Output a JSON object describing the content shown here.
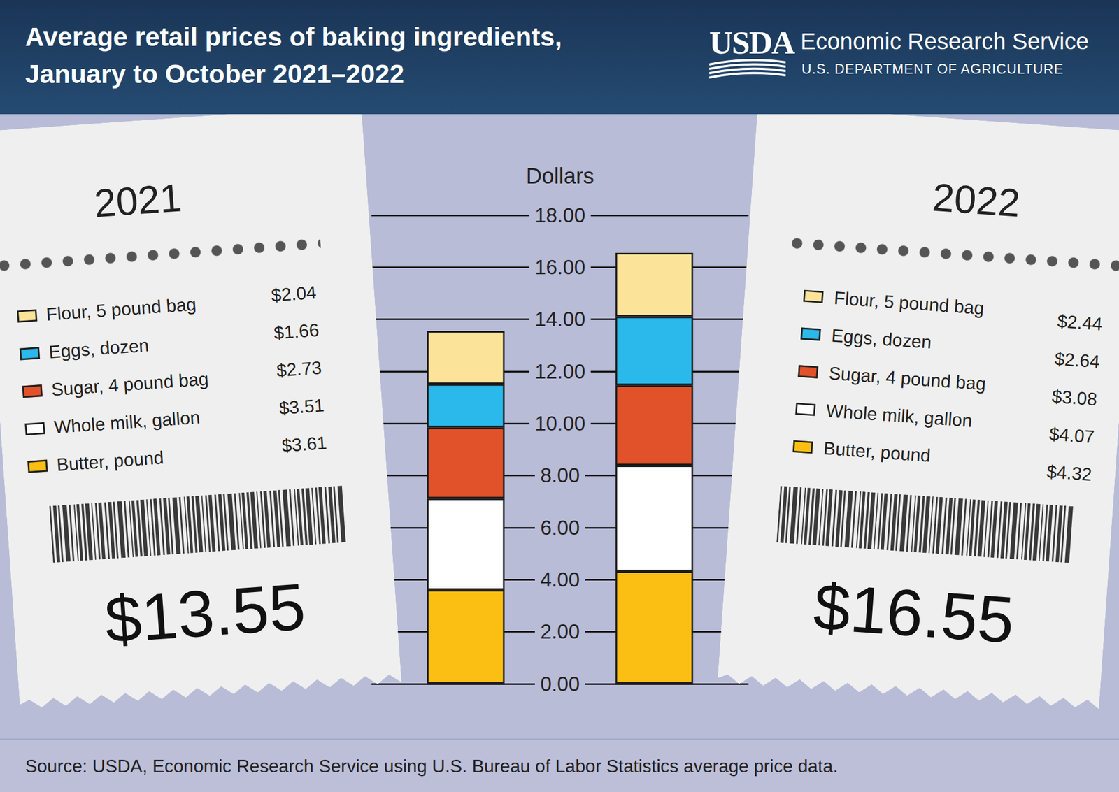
{
  "chart_data": {
    "type": "bar",
    "stacked": true,
    "grid": true,
    "tick_labels": "y",
    "title": "Average retail prices of baking ingredients,\nJanuary to October 2021–2022",
    "publisher": {
      "mark": "USDA",
      "name": "Economic Research Service",
      "department": "U.S. DEPARTMENT OF AGRICULTURE"
    },
    "y_label": "Dollars",
    "categories": [
      "2021",
      "2022"
    ],
    "series": [
      {
        "name": "Flour, 5 pound bag",
        "color": "#fbe49a",
        "values": [
          2.04,
          2.44
        ],
        "value_labels": [
          "$2.04",
          "$2.44"
        ]
      },
      {
        "name": "Eggs, dozen",
        "color": "#2bb8ea",
        "values": [
          1.66,
          2.64
        ],
        "value_labels": [
          "$1.66",
          "$2.64"
        ]
      },
      {
        "name": "Sugar, 4 pound bag",
        "color": "#e2522a",
        "values": [
          2.73,
          3.08
        ],
        "value_labels": [
          "$2.73",
          "$3.08"
        ]
      },
      {
        "name": "Whole milk, gallon",
        "color": "#ffffff",
        "values": [
          3.51,
          4.07
        ],
        "value_labels": [
          "$3.51",
          "$4.07"
        ]
      },
      {
        "name": "Butter, pound",
        "color": "#fbbf14",
        "values": [
          3.61,
          4.32
        ],
        "value_labels": [
          "$3.61",
          "$4.32"
        ]
      }
    ],
    "total_labels": [
      "$13.55",
      "$16.55"
    ],
    "ylim": [
      0,
      18
    ],
    "yticks": [
      {
        "value": 0,
        "label": "0.00"
      },
      {
        "value": 2,
        "label": "2.00"
      },
      {
        "value": 4,
        "label": "4.00"
      },
      {
        "value": 6,
        "label": "6.00"
      },
      {
        "value": 8,
        "label": "8.00"
      },
      {
        "value": 10,
        "label": "10.00"
      },
      {
        "value": 12,
        "label": "12.00"
      },
      {
        "value": 14,
        "label": "14.00"
      },
      {
        "value": 16,
        "label": "16.00"
      },
      {
        "value": 18,
        "label": "18.00"
      }
    ],
    "source": "Source: USDA, Economic Research Service using U.S. Bureau of Labor Statistics average price data."
  }
}
